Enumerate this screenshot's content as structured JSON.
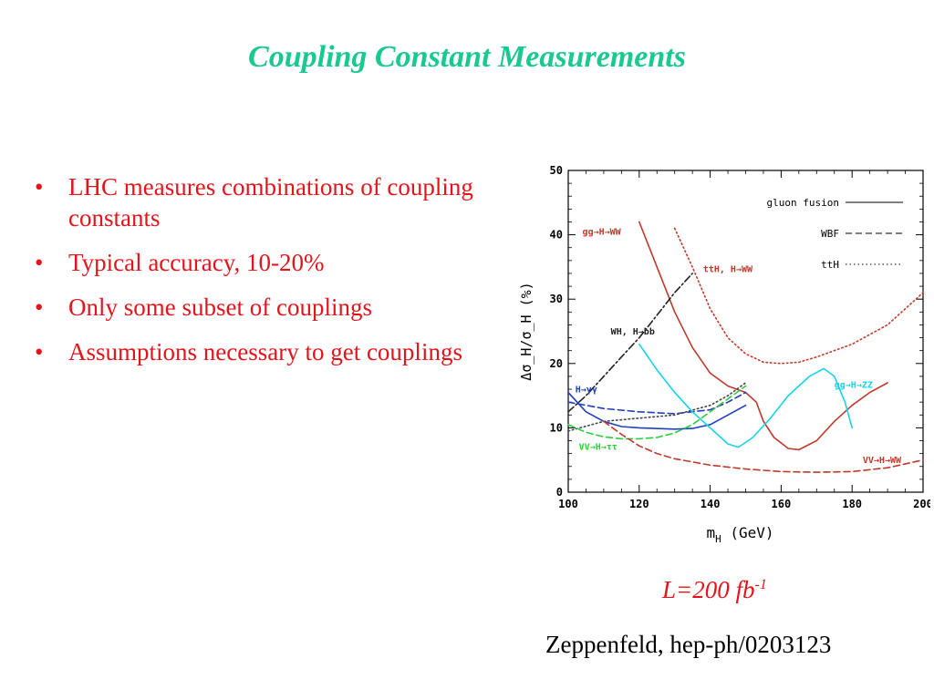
{
  "slide": {
    "title": "Coupling Constant Measurements",
    "bullets": [
      "LHC measures combinations of coupling constants",
      "Typical accuracy, 10-20%",
      "Only some subset of couplings",
      "Assumptions necessary to get couplings"
    ],
    "luminosity_main": "L=200 fb",
    "luminosity_exp": "-1",
    "reference": "Zeppenfeld, hep-ph/0203123"
  },
  "chart_data": {
    "type": "line",
    "xlabel_main": "m",
    "xlabel_sub": "H",
    "xlabel_unit": "(GeV)",
    "ylabel": "Δσ_H/σ_H  (%)",
    "xlim": [
      100,
      200
    ],
    "ylim": [
      0,
      50
    ],
    "xticks": [
      100,
      120,
      140,
      160,
      180,
      200
    ],
    "yticks": [
      0,
      10,
      20,
      30,
      40,
      50
    ],
    "legend": [
      {
        "label": "gluon fusion",
        "style": "solid"
      },
      {
        "label": "WBF",
        "style": "dashed"
      },
      {
        "label": "ttH",
        "style": "dotted"
      }
    ],
    "series": [
      {
        "label": "gg→H→WW",
        "style": "solid",
        "color": "#c0392b",
        "points": [
          [
            120,
            42
          ],
          [
            125,
            35
          ],
          [
            130,
            28
          ],
          [
            135,
            22.5
          ],
          [
            140,
            18.5
          ],
          [
            145,
            16.5
          ],
          [
            150,
            15.5
          ],
          [
            153,
            14
          ],
          [
            155,
            11
          ],
          [
            158,
            8.5
          ],
          [
            162,
            6.8
          ],
          [
            165,
            6.6
          ],
          [
            170,
            8
          ],
          [
            175,
            11
          ],
          [
            180,
            13.5
          ],
          [
            185,
            15.5
          ],
          [
            190,
            17
          ]
        ]
      },
      {
        "label": "ttH, H→WW",
        "style": "dotted",
        "color": "#c0392b",
        "points": [
          [
            130,
            41
          ],
          [
            135,
            35
          ],
          [
            140,
            28.5
          ],
          [
            145,
            24
          ],
          [
            150,
            21.5
          ],
          [
            155,
            20.2
          ],
          [
            160,
            20
          ],
          [
            165,
            20.2
          ],
          [
            170,
            21
          ],
          [
            180,
            23
          ],
          [
            190,
            26
          ],
          [
            200,
            31
          ]
        ]
      },
      {
        "label": "WH, H→bb",
        "style": "dashdot",
        "color": "#222222",
        "points": [
          [
            100,
            12.5
          ],
          [
            105,
            15
          ],
          [
            110,
            18
          ],
          [
            115,
            21
          ],
          [
            120,
            24
          ],
          [
            125,
            27.5
          ],
          [
            130,
            31
          ],
          [
            135,
            34
          ]
        ]
      },
      {
        "label": "H→γγ (gluon fusion)",
        "style": "solid",
        "color": "#1f3fbf",
        "points": [
          [
            100,
            15.5
          ],
          [
            105,
            12.5
          ],
          [
            110,
            11
          ],
          [
            115,
            10.2
          ],
          [
            120,
            10
          ],
          [
            130,
            9.8
          ],
          [
            135,
            9.9
          ],
          [
            140,
            10.5
          ],
          [
            145,
            12
          ],
          [
            150,
            13.5
          ]
        ]
      },
      {
        "label": "H→γγ (WBF)",
        "style": "dashed",
        "color": "#1f3fbf",
        "points": [
          [
            100,
            14
          ],
          [
            110,
            13
          ],
          [
            120,
            12.5
          ],
          [
            130,
            12.2
          ],
          [
            140,
            12.8
          ],
          [
            145,
            14
          ],
          [
            150,
            15.5
          ]
        ]
      },
      {
        "label": "ttH, H→γγ",
        "style": "dotted",
        "color": "#444444",
        "points": [
          [
            100,
            9.5
          ],
          [
            110,
            11
          ],
          [
            120,
            11.5
          ],
          [
            130,
            12
          ],
          [
            140,
            13.5
          ],
          [
            145,
            15
          ],
          [
            150,
            17
          ]
        ]
      },
      {
        "label": "VV→H→ττ",
        "style": "dashed",
        "color": "#2ecc40",
        "points": [
          [
            100,
            10.5
          ],
          [
            105,
            9.3
          ],
          [
            110,
            8.6
          ],
          [
            115,
            8.3
          ],
          [
            120,
            8.3
          ],
          [
            125,
            8.5
          ],
          [
            130,
            9.2
          ],
          [
            135,
            10.5
          ],
          [
            140,
            12.5
          ],
          [
            145,
            14.5
          ],
          [
            150,
            16.5
          ]
        ]
      },
      {
        "label": "gg→H→ZZ",
        "style": "solid",
        "color": "#17d3e6",
        "points": [
          [
            120,
            23
          ],
          [
            125,
            19
          ],
          [
            130,
            15.5
          ],
          [
            135,
            12.5
          ],
          [
            140,
            10
          ],
          [
            145,
            7.5
          ],
          [
            148,
            7
          ],
          [
            152,
            8.5
          ],
          [
            157,
            11.5
          ],
          [
            162,
            15
          ],
          [
            168,
            18
          ],
          [
            172,
            19.2
          ],
          [
            175,
            18
          ],
          [
            178,
            14
          ],
          [
            180,
            10
          ]
        ]
      },
      {
        "label": "VV→H→WW",
        "style": "dashed",
        "color": "#c0392b",
        "points": [
          [
            110,
            11
          ],
          [
            115,
            9
          ],
          [
            120,
            7.2
          ],
          [
            125,
            6
          ],
          [
            130,
            5.2
          ],
          [
            140,
            4.2
          ],
          [
            150,
            3.6
          ],
          [
            160,
            3.2
          ],
          [
            170,
            3.1
          ],
          [
            180,
            3.2
          ],
          [
            190,
            3.8
          ],
          [
            200,
            5
          ]
        ]
      }
    ],
    "annotations": [
      {
        "text": "gg→H→WW",
        "x": 104,
        "y": 40,
        "color": "#c0392b"
      },
      {
        "text": "ttH, H→WW",
        "x": 138,
        "y": 34.2,
        "color": "#c0392b"
      },
      {
        "text": "WH, H→bb",
        "x": 112,
        "y": 24.5,
        "color": "#222222"
      },
      {
        "text": "H→γγ",
        "x": 102,
        "y": 15.5,
        "color": "#1f3fbf"
      },
      {
        "text": "VV→H→ττ",
        "x": 103,
        "y": 6.6,
        "color": "#2ecc40"
      },
      {
        "text": "gg→H→ZZ",
        "x": 175,
        "y": 16.2,
        "color": "#17d3e6"
      },
      {
        "text": "VV→H→WW",
        "x": 183,
        "y": 4.5,
        "color": "#c0392b"
      }
    ],
    "grid": false,
    "legend_position": "top-right"
  },
  "colors": {
    "title": "#19c98d",
    "text_red": "#e4141b"
  }
}
